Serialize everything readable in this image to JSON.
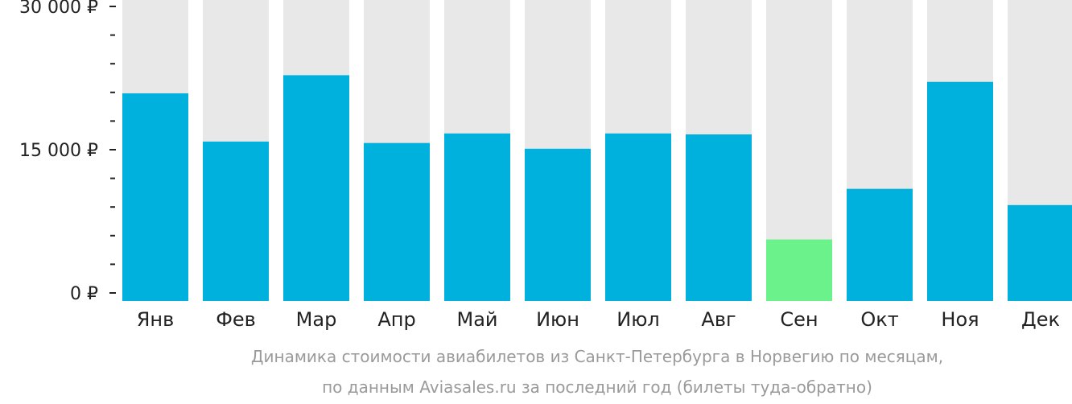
{
  "chart_data": {
    "type": "bar",
    "categories": [
      "Янв",
      "Фев",
      "Мар",
      "Апр",
      "Май",
      "Июн",
      "Июл",
      "Авг",
      "Сен",
      "Окт",
      "Ноя",
      "Дек"
    ],
    "values": [
      20900,
      15850,
      22800,
      15700,
      16700,
      15100,
      16700,
      16600,
      5600,
      10900,
      22100,
      9200
    ],
    "ylim": [
      0,
      30000
    ],
    "yticks": [
      {
        "value": 0,
        "label": "0 ₽"
      },
      {
        "value": 15000,
        "label": "15 000 ₽"
      },
      {
        "value": 30000,
        "label": "30 000 ₽"
      }
    ],
    "minor_tick_step": 3000,
    "highlight_index": 8,
    "caption_lines": [
      "Динамика стоимости авиабилетов из Санкт-Петербурга в Норвегию по месяцам,",
      "по данным Aviasales.ru за последний год (билеты туда-обратно)"
    ],
    "colors": {
      "bar": "#00b0dd",
      "highlight": "#6cf28a",
      "background_bar": "#e8e8e8",
      "text": "#222222",
      "caption": "#9a9a9a"
    }
  }
}
